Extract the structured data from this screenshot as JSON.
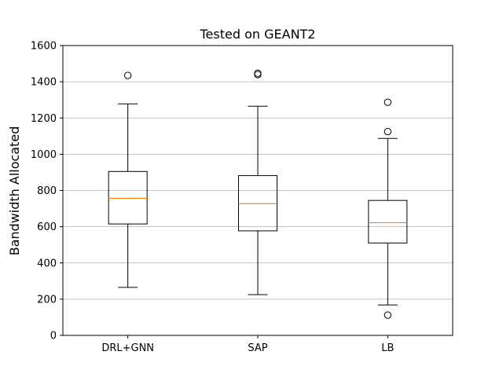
{
  "chart_data": {
    "type": "boxplot",
    "title": "Tested on GEANT2",
    "xlabel": "",
    "ylabel": "Bandwidth Allocated",
    "ylim": [
      0,
      1600
    ],
    "yticks": [
      0,
      200,
      400,
      600,
      800,
      1000,
      1200,
      1400,
      1600
    ],
    "grid": "y",
    "categories": [
      "DRL+GNN",
      "SAP",
      "LB"
    ],
    "boxes": [
      {
        "name": "DRL+GNN",
        "whisker_low": 265,
        "q1": 615,
        "median": 757,
        "q3": 905,
        "whisker_high": 1278,
        "outliers": [
          1435
        ]
      },
      {
        "name": "SAP",
        "whisker_low": 225,
        "q1": 577,
        "median": 727,
        "q3": 882,
        "whisker_high": 1265,
        "outliers": [
          1440,
          1447
        ]
      },
      {
        "name": "LB",
        "whisker_low": 168,
        "q1": 510,
        "median": 622,
        "q3": 745,
        "whisker_high": 1087,
        "outliers": [
          112,
          1125,
          1287
        ]
      }
    ],
    "colors": {
      "box": "#000000",
      "median": "#ff7f0e",
      "grid": "#b0b0b0"
    }
  }
}
